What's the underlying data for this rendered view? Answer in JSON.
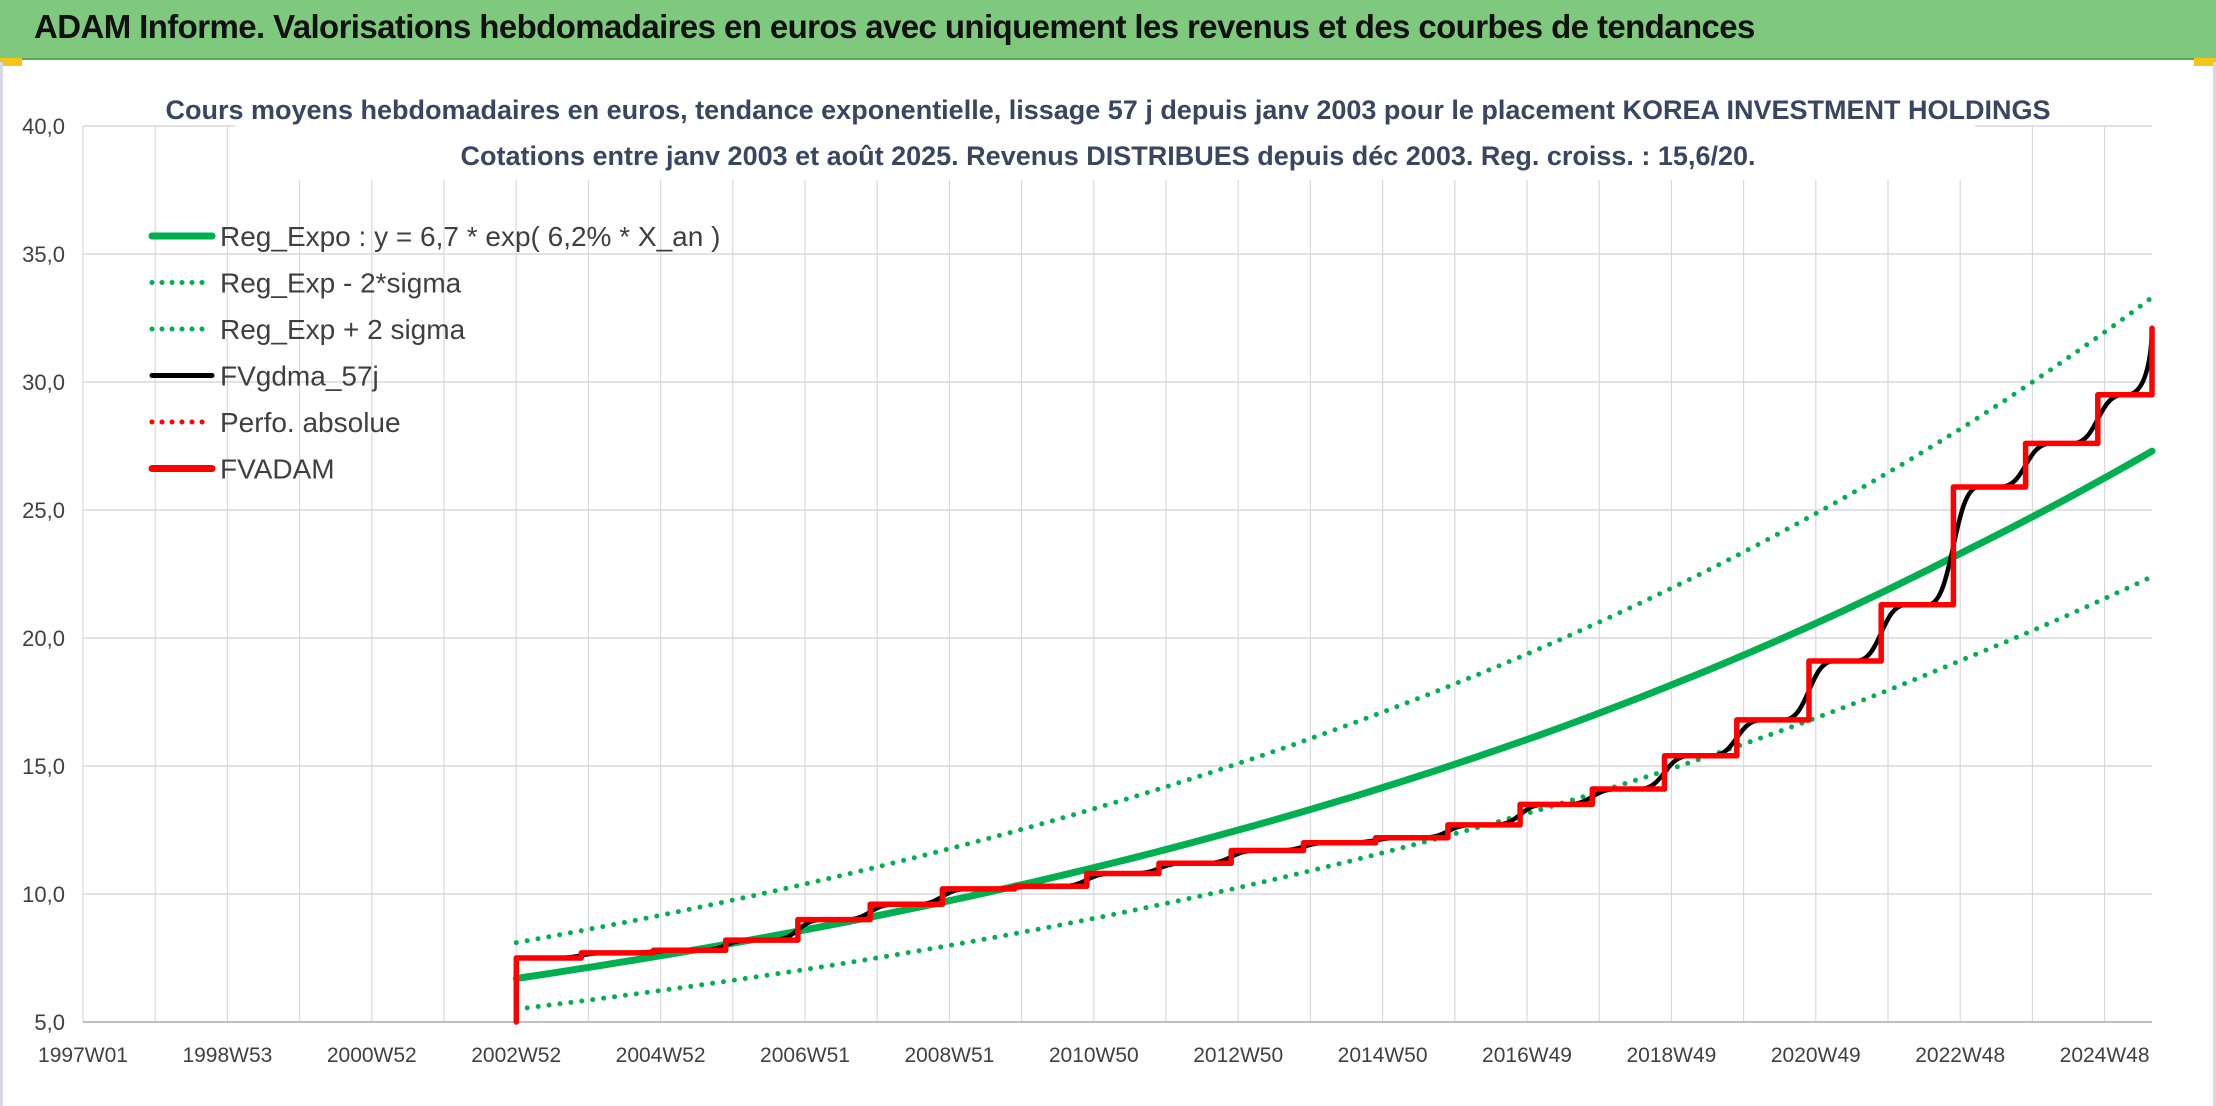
{
  "header": {
    "title": "ADAM Informe. Valorisations hebdomadaires en euros avec uniquement les revenus et des courbes de tendances"
  },
  "colors": {
    "header_bg": "#7fc97f",
    "green": "#00b050",
    "red": "#ff0000",
    "black": "#000000",
    "grid": "#d9d9d9"
  },
  "chart_data": {
    "type": "line",
    "title": "Cours moyens hebdomadaires en euros, tendance exponentielle, lissage 57 j depuis janv 2003 pour le placement KOREA INVESTMENT HOLDINGS",
    "subtitle": "Cotations entre janv 2003 et août 2025. Revenus DISTRIBUES depuis déc 2003. Reg. croiss. : 15,6/20.",
    "xlabel": "",
    "ylabel": "",
    "x_ticks": [
      "1997W01",
      "1998W53",
      "2000W52",
      "2002W52",
      "2004W52",
      "2006W51",
      "2008W51",
      "2010W50",
      "2012W50",
      "2014W50",
      "2016W49",
      "2018W49",
      "2020W49",
      "2022W48",
      "2024W48"
    ],
    "x_range": [
      1997.0,
      2025.65
    ],
    "y_ticks": [
      "5,0",
      "10,0",
      "15,0",
      "20,0",
      "25,0",
      "30,0",
      "35,0",
      "40,0"
    ],
    "ylim": [
      5,
      40
    ],
    "grid": true,
    "legend_position": "top-left",
    "series": [
      {
        "name": "Reg_Expo : y = 6,7 * exp( 6,2% *  X_an )",
        "style": "solid",
        "color": "#00b050",
        "x": [
          2003.0,
          2005.0,
          2007.0,
          2009.0,
          2011.0,
          2013.0,
          2015.0,
          2017.0,
          2019.0,
          2021.0,
          2023.0,
          2025.65
        ],
        "values": [
          6.7,
          7.59,
          8.6,
          9.74,
          11.03,
          12.5,
          14.16,
          16.04,
          18.17,
          20.58,
          23.31,
          27.3
        ]
      },
      {
        "name": "Reg_Exp - 2*sigma",
        "style": "dotted",
        "color": "#00b050",
        "x": [
          2003.0,
          2005.0,
          2007.0,
          2009.0,
          2011.0,
          2013.0,
          2015.0,
          2017.0,
          2019.0,
          2021.0,
          2023.0,
          2025.65
        ],
        "values": [
          5.5,
          6.23,
          7.05,
          7.99,
          9.05,
          10.25,
          11.61,
          13.15,
          14.9,
          16.88,
          19.12,
          22.4
        ]
      },
      {
        "name": "Reg_Exp + 2 sigma",
        "style": "dotted",
        "color": "#00b050",
        "x": [
          2003.0,
          2005.0,
          2007.0,
          2009.0,
          2011.0,
          2013.0,
          2015.0,
          2017.0,
          2019.0,
          2021.0,
          2023.0,
          2025.65
        ],
        "values": [
          8.1,
          9.17,
          10.39,
          11.77,
          13.33,
          15.1,
          17.11,
          19.38,
          21.95,
          24.87,
          28.17,
          33.3
        ]
      },
      {
        "name": "FVgdma_57j",
        "style": "solid",
        "color": "#000000",
        "x": [
          2003.0,
          2003.9,
          2004.9,
          2005.9,
          2006.9,
          2007.9,
          2008.9,
          2009.9,
          2010.9,
          2011.9,
          2012.9,
          2013.9,
          2014.9,
          2015.9,
          2016.9,
          2017.9,
          2018.9,
          2019.9,
          2020.9,
          2021.9,
          2022.9,
          2023.9,
          2024.9,
          2025.65
        ],
        "values": [
          7.5,
          7.7,
          7.8,
          8.2,
          9.0,
          9.6,
          10.2,
          10.3,
          10.8,
          11.2,
          11.7,
          12.0,
          12.2,
          12.7,
          13.5,
          14.1,
          15.4,
          16.8,
          19.1,
          21.3,
          25.9,
          27.6,
          29.5,
          32.1
        ]
      },
      {
        "name": "Perfo. absolue",
        "style": "dotted",
        "color": "#ff0000",
        "x": [],
        "values": []
      },
      {
        "name": "FVADAM",
        "style": "step",
        "color": "#ff0000",
        "x": [
          2003.0,
          2003.9,
          2004.9,
          2005.9,
          2006.9,
          2007.9,
          2008.9,
          2009.9,
          2010.9,
          2011.9,
          2012.9,
          2013.9,
          2014.9,
          2015.9,
          2016.9,
          2017.9,
          2018.9,
          2019.9,
          2020.9,
          2021.9,
          2022.9,
          2023.9,
          2024.9,
          2025.65
        ],
        "values": [
          7.5,
          7.7,
          7.8,
          8.2,
          9.0,
          9.6,
          10.2,
          10.3,
          10.8,
          11.2,
          11.7,
          12.0,
          12.2,
          12.7,
          13.5,
          14.1,
          15.4,
          16.8,
          19.1,
          21.3,
          25.9,
          27.6,
          29.5,
          32.1
        ]
      }
    ]
  }
}
